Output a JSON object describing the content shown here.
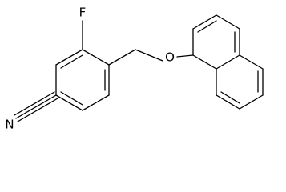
{
  "atoms": [
    {
      "label": "F"
    },
    {
      "label": "O"
    },
    {
      "label": "N"
    }
  ]
}
